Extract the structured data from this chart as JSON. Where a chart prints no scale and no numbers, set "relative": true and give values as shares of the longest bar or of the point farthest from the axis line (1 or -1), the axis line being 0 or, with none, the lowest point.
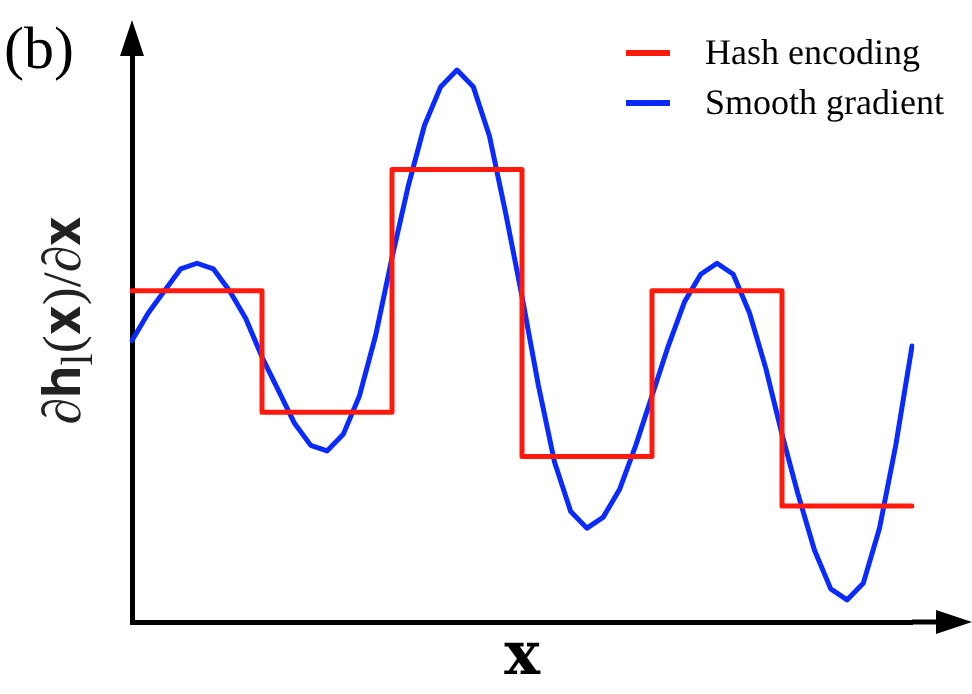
{
  "chart_data": {
    "type": "line",
    "title": "(b)",
    "xlabel": "𝐱",
    "ylabel": "∂𝐡$_{l}$(𝐱)/∂𝐱",
    "relative": true,
    "tick_labels": false,
    "legend": "top right",
    "categories": [
      null,
      null,
      null,
      null,
      null,
      null,
      null,
      null,
      null,
      null,
      null,
      null,
      null,
      null,
      null,
      null,
      null,
      null,
      null,
      null,
      null,
      null,
      null,
      null,
      null,
      null,
      null,
      null,
      null,
      null,
      null,
      null,
      null,
      null,
      null,
      null,
      null,
      null,
      null,
      null,
      null,
      null,
      null,
      null,
      null,
      null,
      null,
      null,
      null
    ],
    "series": [
      {
        "name": "Hash encoding",
        "type": "step",
        "color": "#ff1a0d",
        "values": [
          0.6,
          0.6,
          0.6,
          0.6,
          0.6,
          0.6,
          0.6,
          0.6,
          0.38,
          0.38,
          0.38,
          0.38,
          0.38,
          0.38,
          0.38,
          0.38,
          0.82,
          0.82,
          0.82,
          0.82,
          0.82,
          0.82,
          0.82,
          0.82,
          0.3,
          0.3,
          0.3,
          0.3,
          0.3,
          0.3,
          0.3,
          0.3,
          0.6,
          0.6,
          0.6,
          0.6,
          0.6,
          0.6,
          0.6,
          0.6,
          0.21,
          0.21,
          0.21,
          0.21,
          0.21,
          0.21,
          0.21,
          0.21,
          0.21
        ]
      },
      {
        "name": "Smooth gradient",
        "color": "#0a2bff",
        "values": [
          0.51,
          0.56,
          0.6,
          0.64,
          0.65,
          0.64,
          0.6,
          0.55,
          0.48,
          0.42,
          0.36,
          0.32,
          0.31,
          0.34,
          0.41,
          0.52,
          0.66,
          0.79,
          0.9,
          0.97,
          1,
          0.97,
          0.88,
          0.74,
          0.59,
          0.43,
          0.29,
          0.2,
          0.17,
          0.19,
          0.24,
          0.32,
          0.41,
          0.5,
          0.58,
          0.63,
          0.65,
          0.63,
          0.56,
          0.46,
          0.34,
          0.23,
          0.13,
          0.06,
          0.04,
          0.07,
          0.17,
          0.32,
          0.5
        ]
      }
    ]
  }
}
